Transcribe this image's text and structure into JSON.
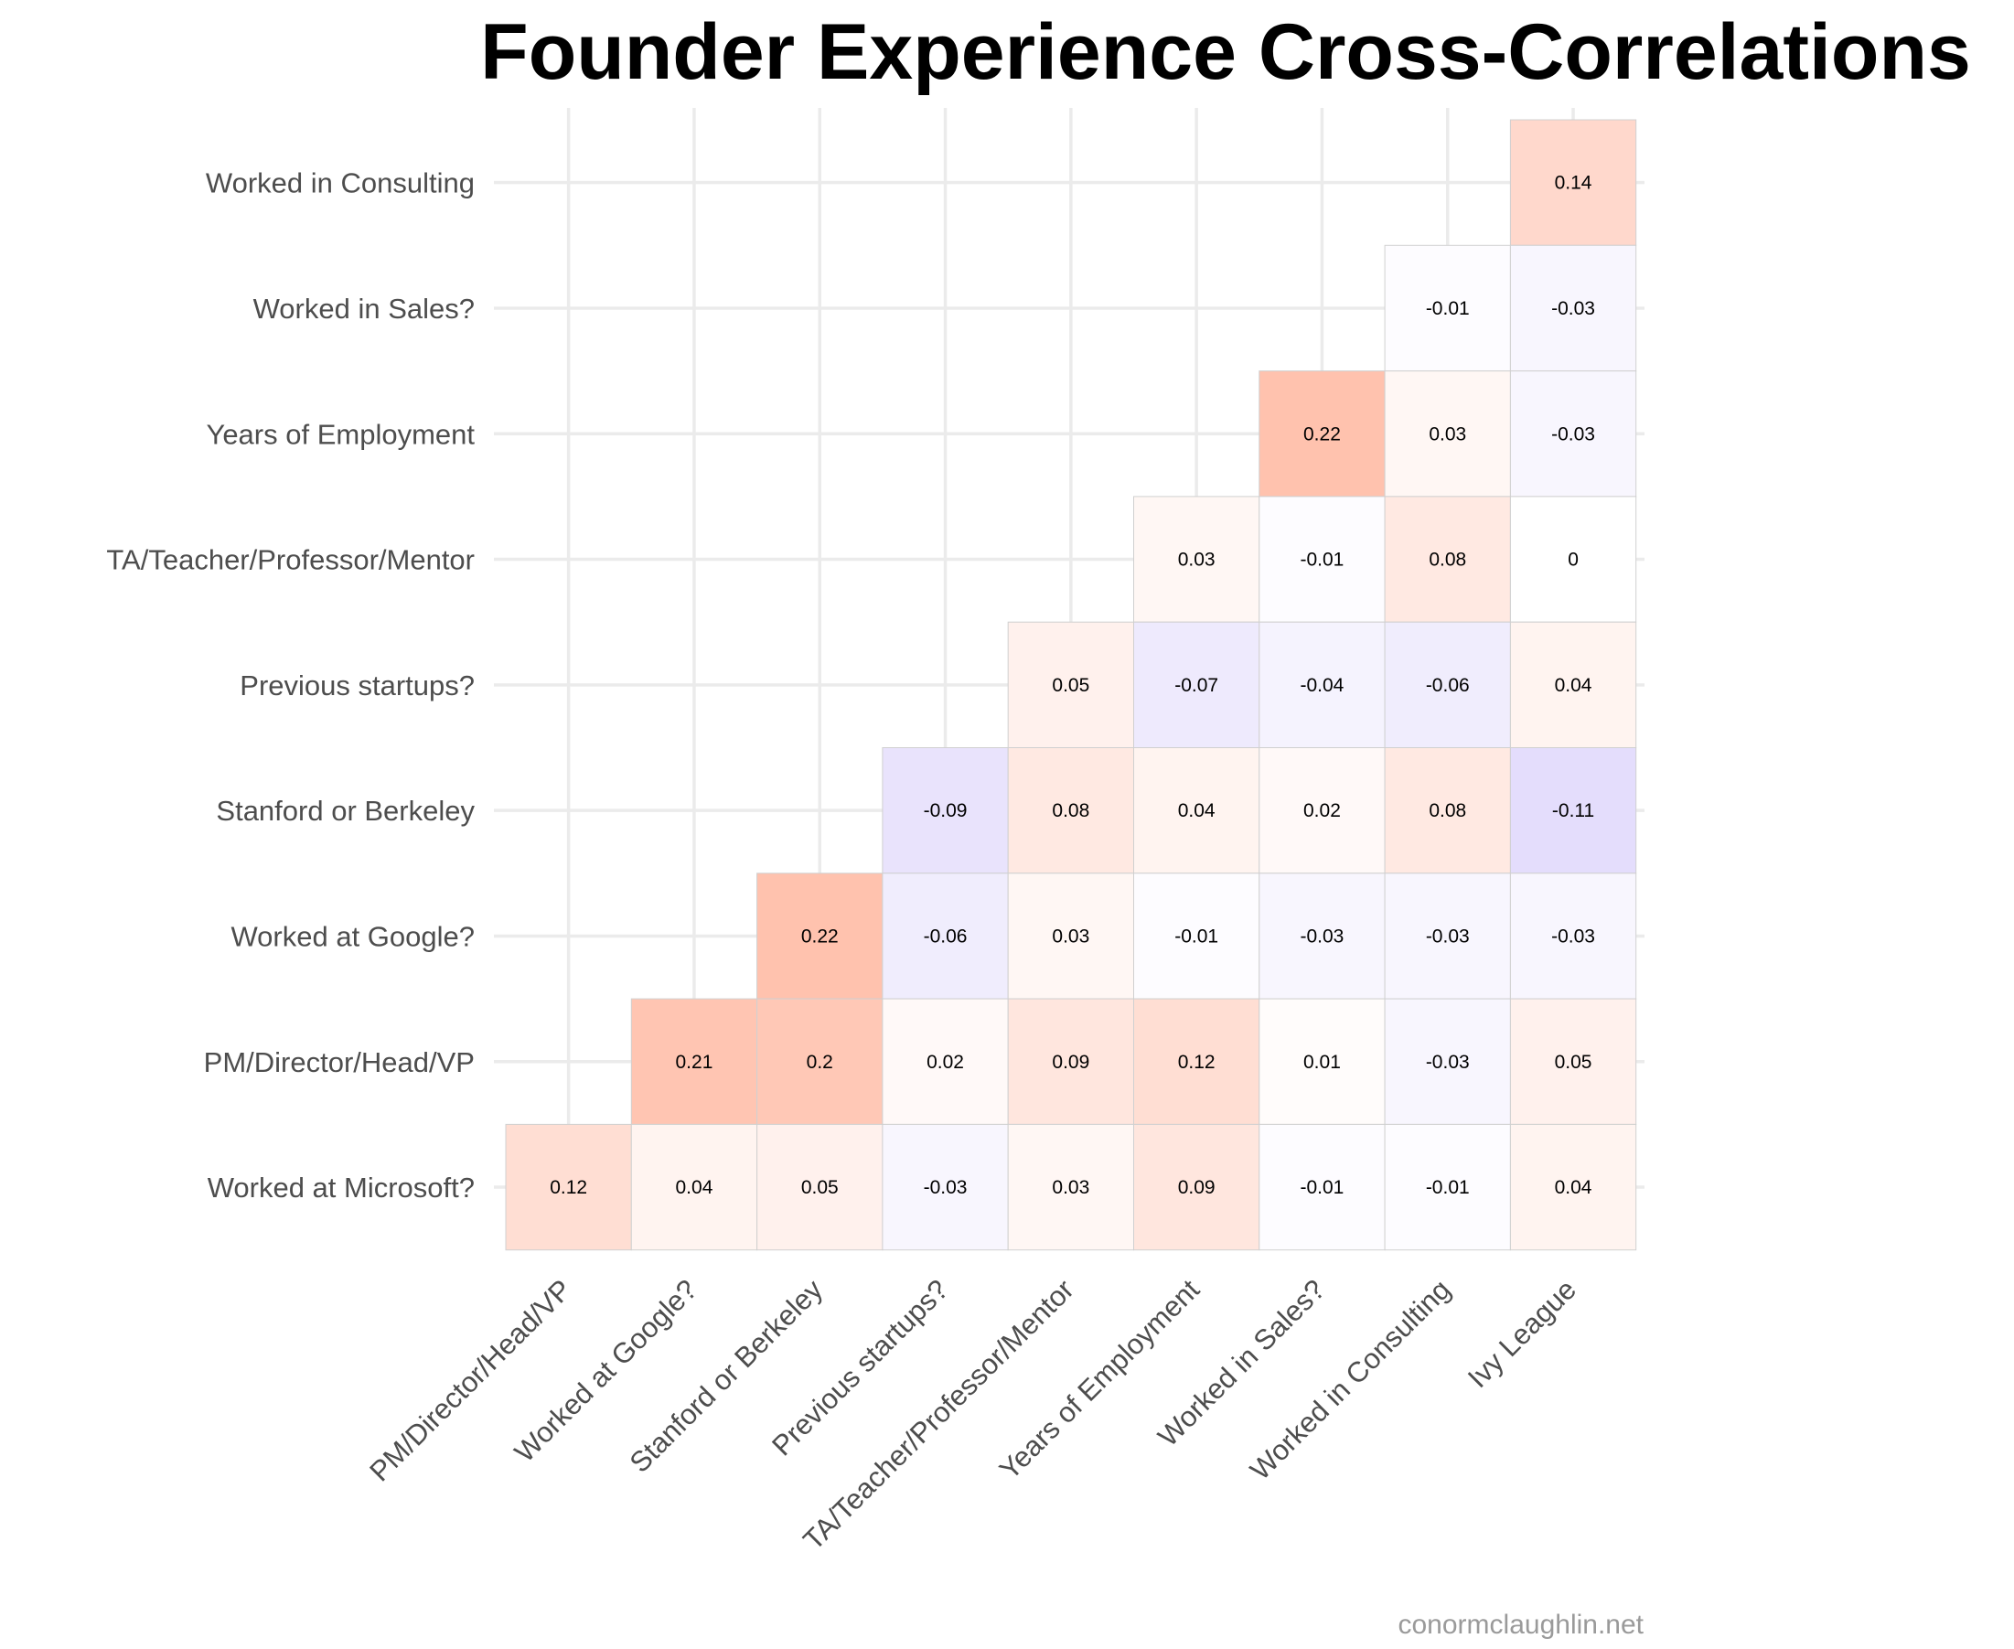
{
  "chart_data": {
    "type": "heatmap",
    "title": "Founder Experience Cross-Correlations",
    "x_labels": [
      "PM/Director/Head/VP",
      "Worked at Google?",
      "Stanford or Berkeley",
      "Previous startups?",
      "TA/Teacher/Professor/Mentor",
      "Years of Employment",
      "Worked in Sales?",
      "Worked in Consulting",
      "Ivy League"
    ],
    "y_labels": [
      "Worked in Consulting",
      "Worked in Sales?",
      "Years of Employment",
      "TA/Teacher/Professor/Mentor",
      "Previous startups?",
      "Stanford or Berkeley",
      "Worked at Google?",
      "PM/Director/Head/VP",
      "Worked at Microsoft?"
    ],
    "values": [
      [
        null,
        null,
        null,
        null,
        null,
        null,
        null,
        null,
        0.14
      ],
      [
        null,
        null,
        null,
        null,
        null,
        null,
        null,
        -0.01,
        -0.03
      ],
      [
        null,
        null,
        null,
        null,
        null,
        null,
        0.22,
        0.03,
        -0.03
      ],
      [
        null,
        null,
        null,
        null,
        null,
        0.03,
        -0.01,
        0.08,
        0
      ],
      [
        null,
        null,
        null,
        null,
        0.05,
        -0.07,
        -0.04,
        -0.06,
        0.04
      ],
      [
        null,
        null,
        null,
        -0.09,
        0.08,
        0.04,
        0.02,
        0.08,
        -0.11
      ],
      [
        null,
        null,
        0.22,
        -0.06,
        0.03,
        -0.01,
        -0.03,
        -0.03,
        -0.03
      ],
      [
        null,
        0.21,
        0.2,
        0.02,
        0.09,
        0.12,
        0.01,
        -0.03,
        0.05
      ],
      [
        0.12,
        0.04,
        0.05,
        -0.03,
        0.03,
        0.09,
        -0.01,
        -0.01,
        0.04
      ]
    ],
    "color_positive": "#ff6633",
    "color_negative": "#7755ee",
    "grid": true
  },
  "caption": "conormclaughlin.net"
}
